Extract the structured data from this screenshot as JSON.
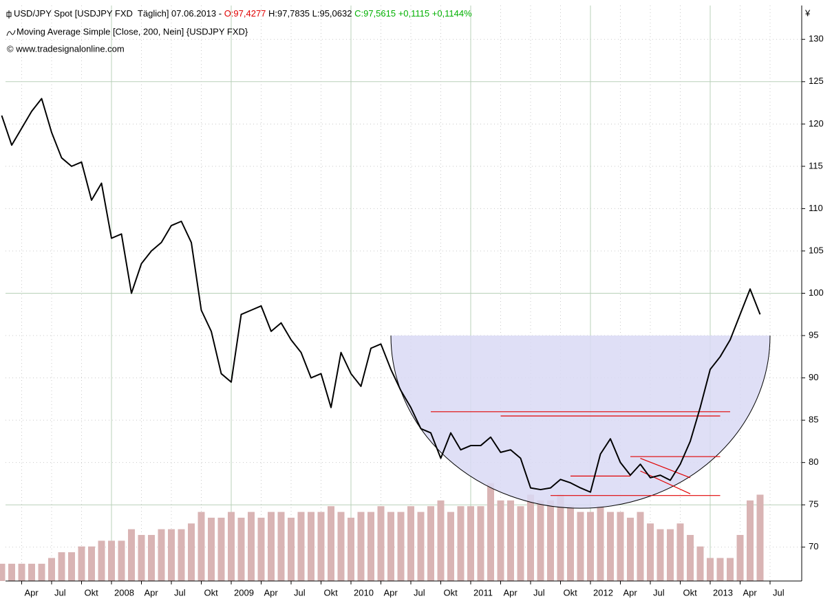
{
  "chart_data": {
    "type": "line",
    "title": "[USDJPY FXD  Täglich] 07.06.2013 -",
    "open_label": "O:97,4277",
    "hl_label": "H:97,7835 L:95,0632",
    "close_label": "C:97,5615 +0,1115 +0,1144%",
    "subtitle": "Moving Average Simple [Close, 200, Nein] {USDJPY FXD}",
    "copyright": "© www.tradesignalonline.com",
    "y_unit": "¥",
    "x": [
      "2007-02",
      "2007-03",
      "2007-04",
      "2007-05",
      "2007-06",
      "2007-07",
      "2007-08",
      "2007-09",
      "2007-10",
      "2007-11",
      "2007-12",
      "2008-01",
      "2008-02",
      "2008-03",
      "2008-04",
      "2008-05",
      "2008-06",
      "2008-07",
      "2008-08",
      "2008-09",
      "2008-10",
      "2008-11",
      "2008-12",
      "2009-01",
      "2009-02",
      "2009-03",
      "2009-04",
      "2009-05",
      "2009-06",
      "2009-07",
      "2009-08",
      "2009-09",
      "2009-10",
      "2009-11",
      "2009-12",
      "2010-01",
      "2010-02",
      "2010-03",
      "2010-04",
      "2010-05",
      "2010-06",
      "2010-07",
      "2010-08",
      "2010-09",
      "2010-10",
      "2010-11",
      "2010-12",
      "2011-01",
      "2011-02",
      "2011-03",
      "2011-04",
      "2011-05",
      "2011-06",
      "2011-07",
      "2011-08",
      "2011-09",
      "2011-10",
      "2011-11",
      "2011-12",
      "2012-01",
      "2012-02",
      "2012-03",
      "2012-04",
      "2012-05",
      "2012-06",
      "2012-07",
      "2012-08",
      "2012-09",
      "2012-10",
      "2012-11",
      "2012-12",
      "2013-01",
      "2013-02",
      "2013-03",
      "2013-04",
      "2013-05",
      "2013-06"
    ],
    "series": [
      {
        "name": "USD/JPY Spot",
        "color": "#000000",
        "values": [
          121,
          117.5,
          119.5,
          121.5,
          123,
          119,
          116,
          115,
          115.5,
          111,
          113,
          106.5,
          107,
          100,
          103.5,
          105,
          106,
          108,
          108.5,
          106,
          98,
          95.5,
          90.5,
          89.5,
          97.5,
          98,
          98.5,
          95.5,
          96.5,
          94.5,
          93,
          90,
          90.5,
          86.5,
          93,
          90.5,
          89,
          93.5,
          94,
          91,
          88.5,
          86.5,
          84,
          83.5,
          80.5,
          83.5,
          81.5,
          82,
          82,
          83,
          81.2,
          81.5,
          80.5,
          77,
          76.8,
          77,
          78,
          77.6,
          77,
          76.5,
          81,
          82.8,
          80,
          78.5,
          79.8,
          78.2,
          78.5,
          77.9,
          79.8,
          82.5,
          86.5,
          91,
          92.5,
          94.5,
          97.5,
          100.5,
          97.5
        ]
      },
      {
        "color": "#d9b4b4",
        "axis": "y2",
        "values": [
          3,
          3,
          3,
          3,
          3,
          4,
          5,
          5,
          6,
          6,
          7,
          7,
          7,
          9,
          8,
          8,
          9,
          9,
          9,
          10,
          12,
          11,
          11,
          12,
          11,
          12,
          11,
          12,
          12,
          11,
          12,
          12,
          12,
          13,
          12,
          11,
          12,
          12,
          13,
          12,
          12,
          13,
          12,
          13,
          14,
          12,
          13,
          13,
          13,
          17,
          14,
          14,
          13,
          15,
          14,
          14,
          15,
          13,
          12,
          12,
          13,
          12,
          12,
          11,
          12,
          10,
          9,
          9,
          10,
          8,
          6,
          4,
          4,
          4,
          8,
          14,
          15
        ]
      }
    ],
    "ylim": [
      66,
      134
    ],
    "yticks": [
      70,
      75,
      80,
      85,
      90,
      95,
      100,
      105,
      110,
      115,
      120,
      125,
      130
    ],
    "y2lim": [
      0,
      100
    ],
    "xticks": [
      {
        "value": "2007-04",
        "label": "Apr"
      },
      {
        "value": "2007-07",
        "label": "Jul"
      },
      {
        "value": "2007-10",
        "label": "Okt"
      },
      {
        "value": "2008-01",
        "label": "2008"
      },
      {
        "value": "2008-04",
        "label": "Apr"
      },
      {
        "value": "2008-07",
        "label": "Jul"
      },
      {
        "value": "2008-10",
        "label": "Okt"
      },
      {
        "value": "2009-01",
        "label": "2009"
      },
      {
        "value": "2009-04",
        "label": "Apr"
      },
      {
        "value": "2009-07",
        "label": "Jul"
      },
      {
        "value": "2009-10",
        "label": "Okt"
      },
      {
        "value": "2010-01",
        "label": "2010"
      },
      {
        "value": "2010-04",
        "label": "Apr"
      },
      {
        "value": "2010-07",
        "label": "Jul"
      },
      {
        "value": "2010-10",
        "label": "Okt"
      },
      {
        "value": "2011-01",
        "label": "2011"
      },
      {
        "value": "2011-04",
        "label": "Apr"
      },
      {
        "value": "2011-07",
        "label": "Jul"
      },
      {
        "value": "2011-10",
        "label": "Okt"
      },
      {
        "value": "2012-01",
        "label": "2012"
      },
      {
        "value": "2012-04",
        "label": "Apr"
      },
      {
        "value": "2012-07",
        "label": "Jul"
      },
      {
        "value": "2012-10",
        "label": "Okt"
      },
      {
        "value": "2013-01",
        "label": "2013"
      },
      {
        "value": "2013-04",
        "label": "Apr"
      },
      {
        "value": "2013-07",
        "label": "Jul"
      }
    ],
    "grid": true,
    "annotations": {
      "bowl": {
        "x": [
          "2010-05",
          "2013-07"
        ],
        "top": 95,
        "bottom": 74.6,
        "fill": "#d9d9f5"
      },
      "lines": [
        {
          "x": [
            "2010-09",
            "2013-03"
          ],
          "y": [
            86,
            86
          ],
          "color": "#e00000"
        },
        {
          "x": [
            "2011-04",
            "2013-02"
          ],
          "y": [
            85.5,
            85.5
          ],
          "color": "#e00000"
        },
        {
          "x": [
            "2012-05",
            "2013-02"
          ],
          "y": [
            80.7,
            80.7
          ],
          "color": "#e00000"
        },
        {
          "x": [
            "2011-11",
            "2012-05"
          ],
          "y": [
            78.4,
            78.4
          ],
          "color": "#e00000"
        },
        {
          "x": [
            "2011-09",
            "2013-02"
          ],
          "y": [
            76.1,
            76.1
          ],
          "color": "#e00000"
        },
        {
          "x": [
            "2012-06",
            "2012-11"
          ],
          "y": [
            80.5,
            78.2
          ],
          "color": "#e00000"
        },
        {
          "x": [
            "2012-06",
            "2012-11"
          ],
          "y": [
            79,
            76.3
          ],
          "color": "#e00000"
        }
      ]
    }
  }
}
